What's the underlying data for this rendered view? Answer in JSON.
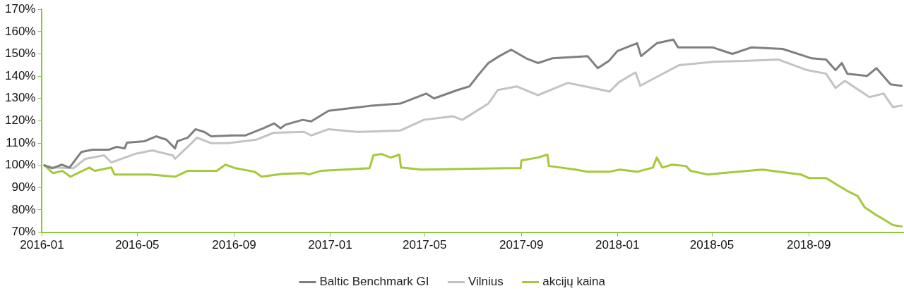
{
  "chart_data": {
    "type": "line",
    "xlim": [
      "2016-01-01",
      "2018-12-31"
    ],
    "xticks": [
      "2016-01",
      "2016-05",
      "2016-09",
      "2017-01",
      "2017-05",
      "2017-09",
      "2018-01",
      "2018-05",
      "2018-09"
    ],
    "ylim": [
      70,
      170
    ],
    "yticks": [
      {
        "value": 70,
        "label": "70%"
      },
      {
        "value": 80,
        "label": "80%"
      },
      {
        "value": 90,
        "label": "90%"
      },
      {
        "value": 100,
        "label": "100%"
      },
      {
        "value": 110,
        "label": "110%"
      },
      {
        "value": 120,
        "label": "120%"
      },
      {
        "value": 130,
        "label": "130%"
      },
      {
        "value": 140,
        "label": "140%"
      },
      {
        "value": 150,
        "label": "150%"
      },
      {
        "value": 160,
        "label": "160%"
      },
      {
        "value": 170,
        "label": "170%"
      }
    ],
    "grid": false,
    "legend": "bottom",
    "marker": "none",
    "line_style": "solid",
    "series": [
      {
        "name": "Baltic Benchmark GI",
        "color": "#7f7f7f",
        "x": [
          "2016-01-04",
          "2016-01-14",
          "2016-01-26",
          "2016-02-05",
          "2016-02-20",
          "2016-03-05",
          "2016-03-26",
          "2016-04-05",
          "2016-04-15",
          "2016-04-18",
          "2016-05-10",
          "2016-05-25",
          "2016-06-07",
          "2016-06-18",
          "2016-06-21",
          "2016-07-04",
          "2016-07-14",
          "2016-07-25",
          "2016-08-03",
          "2016-08-30",
          "2016-09-15",
          "2016-10-08",
          "2016-10-22",
          "2016-10-30",
          "2016-11-05",
          "2016-11-27",
          "2016-12-08",
          "2016-12-30",
          "2017-01-31",
          "2017-02-23",
          "2017-03-31",
          "2017-05-03",
          "2017-05-13",
          "2017-06-12",
          "2017-06-27",
          "2017-07-08",
          "2017-07-21",
          "2017-08-04",
          "2017-08-19",
          "2017-09-07",
          "2017-09-22",
          "2017-10-10",
          "2017-11-24",
          "2017-12-07",
          "2017-12-21",
          "2018-01-01",
          "2018-01-26",
          "2018-01-31",
          "2018-02-20",
          "2018-03-13",
          "2018-03-19",
          "2018-05-02",
          "2018-05-27",
          "2018-06-20",
          "2018-07-30",
          "2018-09-05",
          "2018-09-23",
          "2018-10-05",
          "2018-10-13",
          "2018-10-20",
          "2018-11-14",
          "2018-11-26",
          "2018-12-14",
          "2018-12-28"
        ],
        "values": [
          100,
          98.7,
          100.3,
          99,
          106,
          107,
          107,
          108.3,
          107.6,
          110.2,
          110.8,
          113,
          111.5,
          107.6,
          110.8,
          112.4,
          116.2,
          115,
          113,
          113.4,
          113.4,
          116.6,
          118.8,
          116.6,
          118.2,
          120.4,
          119.7,
          124.5,
          125.8,
          126.8,
          127.7,
          132.2,
          130,
          133.8,
          135.4,
          140.4,
          145.9,
          149,
          151.9,
          148,
          145.9,
          148,
          149,
          143.6,
          146.8,
          151.3,
          154.8,
          149,
          154.8,
          156.4,
          152.9,
          152.9,
          150,
          152.9,
          152.2,
          148,
          147.5,
          142.7,
          145.9,
          141.1,
          140.1,
          143.6,
          136.3,
          135.7
        ]
      },
      {
        "name": "Vilnius",
        "color": "#c3c3c3",
        "x": [
          "2016-01-04",
          "2016-01-15",
          "2016-02-10",
          "2016-02-25",
          "2016-03-20",
          "2016-03-29",
          "2016-04-28",
          "2016-05-20",
          "2016-06-15",
          "2016-06-18",
          "2016-07-04",
          "2016-07-16",
          "2016-08-03",
          "2016-08-24",
          "2016-09-29",
          "2016-10-21",
          "2016-11-29",
          "2016-12-08",
          "2016-12-30",
          "2017-02-05",
          "2017-03-31",
          "2017-04-30",
          "2017-06-06",
          "2017-06-18",
          "2017-07-21",
          "2017-08-02",
          "2017-08-26",
          "2017-09-22",
          "2017-10-30",
          "2017-12-13",
          "2017-12-22",
          "2018-01-03",
          "2018-01-24",
          "2018-01-30",
          "2018-02-19",
          "2018-03-20",
          "2018-05-05",
          "2018-06-11",
          "2018-07-24",
          "2018-08-30",
          "2018-09-23",
          "2018-10-05",
          "2018-10-17",
          "2018-11-17",
          "2018-12-05",
          "2018-12-17",
          "2018-12-28"
        ],
        "values": [
          100,
          99,
          98.7,
          102.9,
          104.5,
          101.3,
          105.1,
          106.7,
          104.5,
          102.9,
          108.3,
          112.4,
          109.9,
          109.9,
          111.5,
          114.6,
          115,
          113.4,
          116.2,
          115,
          115.6,
          120.4,
          122,
          120.4,
          127.7,
          133.8,
          135.4,
          131.5,
          137,
          133.8,
          133.1,
          137.3,
          141.7,
          135.7,
          139.5,
          144.9,
          146.5,
          146.8,
          147.5,
          142.7,
          141.1,
          134.7,
          137.9,
          130.6,
          132.2,
          126.1,
          126.8
        ]
      },
      {
        "name": "akcijų kaina",
        "color": "#a5c93a",
        "x": [
          "2016-01-04",
          "2016-01-15",
          "2016-01-27",
          "2016-02-06",
          "2016-03-01",
          "2016-03-08",
          "2016-03-29",
          "2016-04-02",
          "2016-05-17",
          "2016-06-18",
          "2016-07-04",
          "2016-08-10",
          "2016-08-21",
          "2016-09-03",
          "2016-09-27",
          "2016-10-06",
          "2016-11-02",
          "2016-11-29",
          "2016-12-05",
          "2016-12-20",
          "2017-02-20",
          "2017-02-25",
          "2017-03-07",
          "2017-03-19",
          "2017-03-30",
          "2017-04-01",
          "2017-04-27",
          "2017-08-11",
          "2017-08-31",
          "2017-09-01",
          "2017-09-22",
          "2017-10-04",
          "2017-10-06",
          "2017-11-09",
          "2017-11-24",
          "2017-12-21",
          "2018-01-04",
          "2018-01-26",
          "2018-02-15",
          "2018-02-20",
          "2018-02-27",
          "2018-03-11",
          "2018-03-29",
          "2018-04-04",
          "2018-04-25",
          "2018-07-04",
          "2018-08-22",
          "2018-09-01",
          "2018-09-23",
          "2018-10-05",
          "2018-10-20",
          "2018-11-02",
          "2018-11-11",
          "2018-11-23",
          "2018-12-05",
          "2018-12-17",
          "2018-12-28"
        ],
        "values": [
          100,
          96.5,
          97.5,
          94.9,
          99,
          97.5,
          99,
          95.9,
          95.9,
          94.9,
          97.5,
          97.5,
          100.3,
          98.7,
          97.1,
          94.9,
          96.2,
          96.5,
          95.9,
          97.5,
          98.7,
          104.5,
          105.1,
          103.5,
          104.8,
          99,
          98.1,
          98.7,
          98.7,
          102.2,
          103.5,
          104.8,
          99.7,
          98.1,
          97.1,
          97.1,
          98.1,
          97.1,
          99,
          103.5,
          99,
          100.3,
          99.7,
          97.5,
          95.9,
          98.1,
          95.9,
          94.3,
          94.3,
          91.7,
          88.5,
          86.3,
          81.2,
          78.3,
          75.8,
          73.2,
          72.6
        ]
      }
    ]
  }
}
